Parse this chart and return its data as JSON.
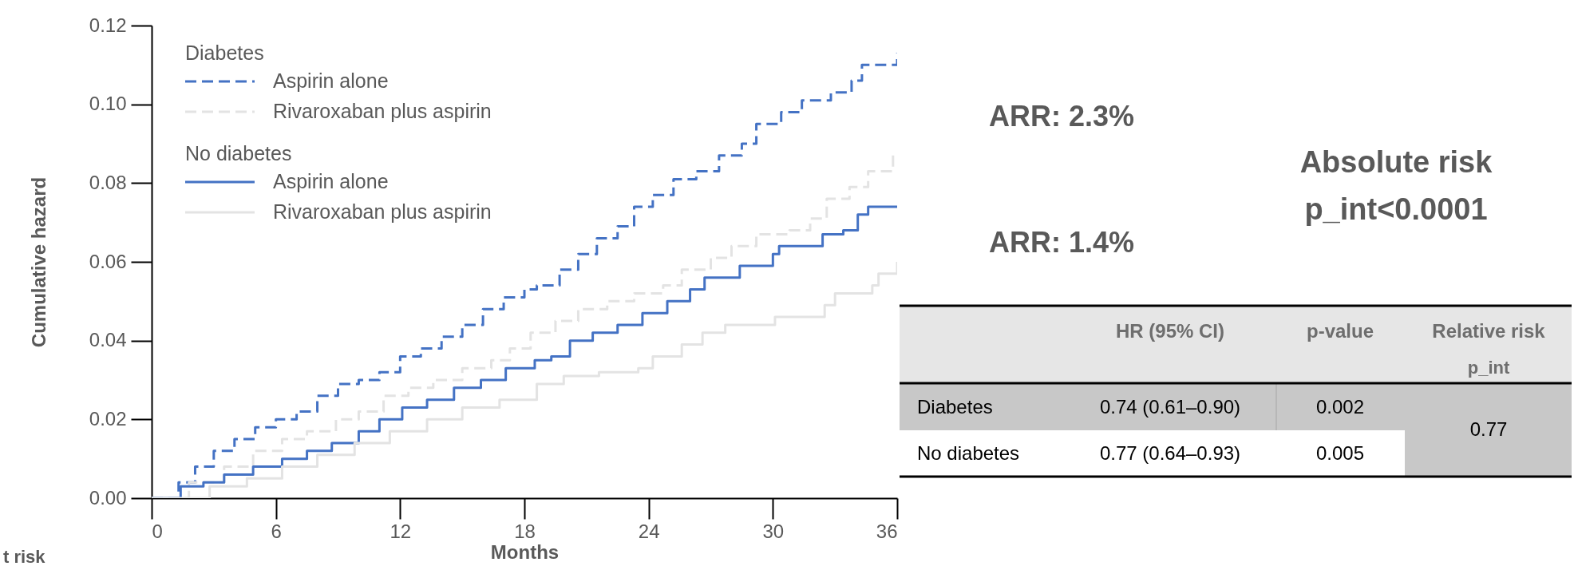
{
  "chart_data": [
    {
      "type": "step",
      "xlabel": "Months",
      "ylabel": "Cumulative hazard",
      "xlim": [
        0,
        36
      ],
      "ylim": [
        0,
        0.12
      ],
      "xticks": [
        0,
        6,
        12,
        18,
        24,
        30,
        36
      ],
      "yticks": [
        {
          "value": 0,
          "label": "0.00"
        },
        {
          "value": 0.02,
          "label": "0.02"
        },
        {
          "value": 0.04,
          "label": "0.04"
        },
        {
          "value": 0.06,
          "label": "0.06"
        },
        {
          "value": 0.08,
          "label": "0.08"
        },
        {
          "value": 0.1,
          "label": "0.10"
        },
        {
          "value": 0.12,
          "label": "0.12"
        }
      ],
      "grid": false,
      "legend": "top left",
      "marker": "none",
      "annotations": [
        "Diabetes",
        "No diabetes",
        "t risk"
      ],
      "series": [
        {
          "name": "Aspirin alone",
          "color": "#4472c4",
          "line_style": "dashed",
          "x": [
            0,
            1.3,
            2.1,
            3,
            4,
            5,
            6,
            7,
            8,
            9,
            10,
            11,
            12,
            13,
            14,
            15,
            16,
            17,
            18,
            18.6,
            19.7,
            20.6,
            21.5,
            22.5,
            23.3,
            24.2,
            25.2,
            26.3,
            27.4,
            28.5,
            29.2,
            30.4,
            31.4,
            32.8,
            33.8,
            34.3,
            36
          ],
          "values": [
            0,
            0.004,
            0.008,
            0.012,
            0.015,
            0.018,
            0.02,
            0.022,
            0.026,
            0.029,
            0.03,
            0.032,
            0.036,
            0.038,
            0.041,
            0.044,
            0.048,
            0.051,
            0.053,
            0.054,
            0.058,
            0.062,
            0.066,
            0.069,
            0.074,
            0.077,
            0.081,
            0.083,
            0.087,
            0.09,
            0.095,
            0.098,
            0.101,
            0.103,
            0.106,
            0.11,
            0.113
          ]
        },
        {
          "name": "Rivaroxaban plus aspirin",
          "color": "#e3e3e3",
          "line_style": "dashed",
          "x": [
            0,
            1.8,
            3.5,
            4.9,
            6.3,
            7.5,
            8.9,
            10,
            11.2,
            12.4,
            13.6,
            15,
            16.4,
            17.3,
            18.3,
            19.5,
            20.6,
            22,
            23.3,
            24.7,
            25.6,
            27,
            28,
            29.2,
            30.8,
            31.8,
            32.6,
            33.7,
            34.6,
            35.8,
            36
          ],
          "values": [
            0,
            0.004,
            0.008,
            0.012,
            0.015,
            0.017,
            0.02,
            0.022,
            0.026,
            0.028,
            0.03,
            0.033,
            0.035,
            0.038,
            0.042,
            0.045,
            0.048,
            0.05,
            0.052,
            0.054,
            0.058,
            0.061,
            0.064,
            0.067,
            0.068,
            0.071,
            0.076,
            0.079,
            0.083,
            0.087,
            0.087
          ]
        },
        {
          "name": "Aspirin alone",
          "color": "#4472c4",
          "line_style": "solid",
          "x": [
            0,
            1.4,
            2.5,
            3.5,
            4.9,
            6.3,
            7.5,
            8.7,
            10,
            11,
            12.1,
            13.3,
            14.6,
            15.9,
            17.1,
            18.5,
            19.3,
            20.2,
            21.3,
            22.5,
            23.7,
            24.9,
            26,
            26.7,
            28.4,
            30,
            30.3,
            31.8,
            32.4,
            33.4,
            34.1,
            34.6,
            36
          ],
          "values": [
            0,
            0.003,
            0.004,
            0.006,
            0.008,
            0.01,
            0.012,
            0.014,
            0.017,
            0.02,
            0.023,
            0.025,
            0.028,
            0.03,
            0.033,
            0.035,
            0.036,
            0.04,
            0.042,
            0.044,
            0.047,
            0.05,
            0.053,
            0.056,
            0.059,
            0.062,
            0.064,
            0.064,
            0.067,
            0.068,
            0.072,
            0.074,
            0.074
          ]
        },
        {
          "name": "Rivaroxaban plus aspirin",
          "color": "#e3e3e3",
          "line_style": "solid",
          "x": [
            0,
            2.8,
            4.6,
            6.3,
            8,
            9.8,
            11.5,
            13.3,
            15,
            16.8,
            18.6,
            19.9,
            21.6,
            23.5,
            24.2,
            25.6,
            26.6,
            27.7,
            30.1,
            32.5,
            33,
            34.8,
            35.1,
            36
          ],
          "values": [
            0,
            0.003,
            0.005,
            0.008,
            0.011,
            0.014,
            0.017,
            0.02,
            0.023,
            0.025,
            0.029,
            0.031,
            0.032,
            0.033,
            0.036,
            0.039,
            0.042,
            0.044,
            0.046,
            0.049,
            0.052,
            0.054,
            0.057,
            0.06
          ]
        }
      ]
    },
    {
      "type": "other",
      "annotations": [
        "ARR: 2.3%",
        "ARR: 1.4%",
        "Absolute risk",
        "p_int<0.0001",
        "HR (95% CI)",
        "p-value",
        "Relative risk",
        "p_int",
        "Diabetes",
        "0.74 (0.61–0.90)",
        "0.002",
        "No diabetes",
        "0.77 (0.64–0.93)",
        "0.005",
        "0.77"
      ]
    }
  ]
}
